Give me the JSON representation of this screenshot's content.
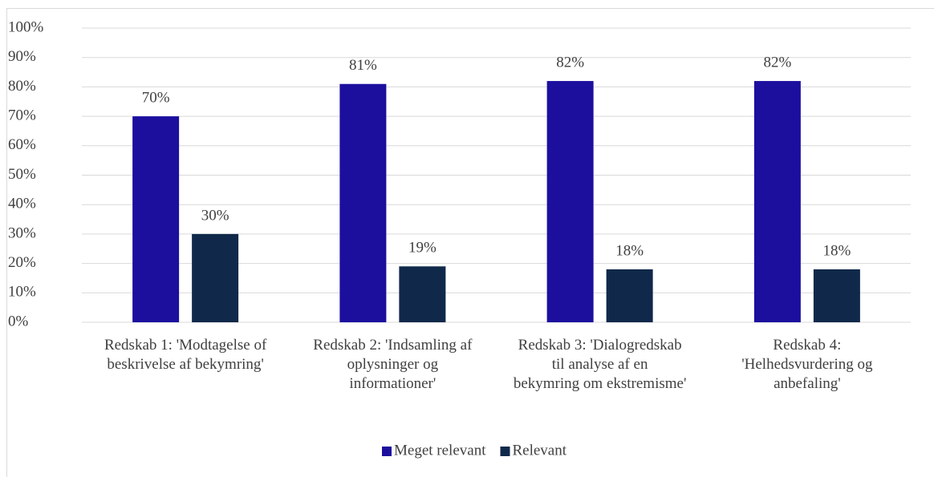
{
  "chart_data": {
    "type": "bar",
    "categories": [
      "Redskab 1: 'Modtagelse of beskrivelse af bekymring'",
      "Redskab 2: 'Indsamling af oplysninger og informationer'",
      "Redskab 3: 'Dialogredskab til analyse af en bekymring om ekstremisme'",
      "Redskab 4: 'Helhedsvurdering og anbefaling'"
    ],
    "series": [
      {
        "name": "Meget relevant",
        "color": "#1c0f9e",
        "values": [
          70,
          81,
          82,
          82
        ],
        "value_labels": [
          "70%",
          "81%",
          "82%",
          "82%"
        ]
      },
      {
        "name": "Relevant",
        "color": "#10294a",
        "values": [
          30,
          19,
          18,
          18
        ],
        "value_labels": [
          "30%",
          "19%",
          "18%",
          "18%"
        ]
      }
    ],
    "ylim": [
      0,
      100
    ],
    "yticks": [
      {
        "value": 0,
        "label": "0%"
      },
      {
        "value": 10,
        "label": "10%"
      },
      {
        "value": 20,
        "label": "20%"
      },
      {
        "value": 30,
        "label": "30%"
      },
      {
        "value": 40,
        "label": "40%"
      },
      {
        "value": 50,
        "label": "50%"
      },
      {
        "value": 60,
        "label": "60%"
      },
      {
        "value": 70,
        "label": "70%"
      },
      {
        "value": 80,
        "label": "80%"
      },
      {
        "value": 90,
        "label": "90%"
      },
      {
        "value": 100,
        "label": "100%"
      }
    ],
    "grid": true,
    "legend": "bottom"
  }
}
